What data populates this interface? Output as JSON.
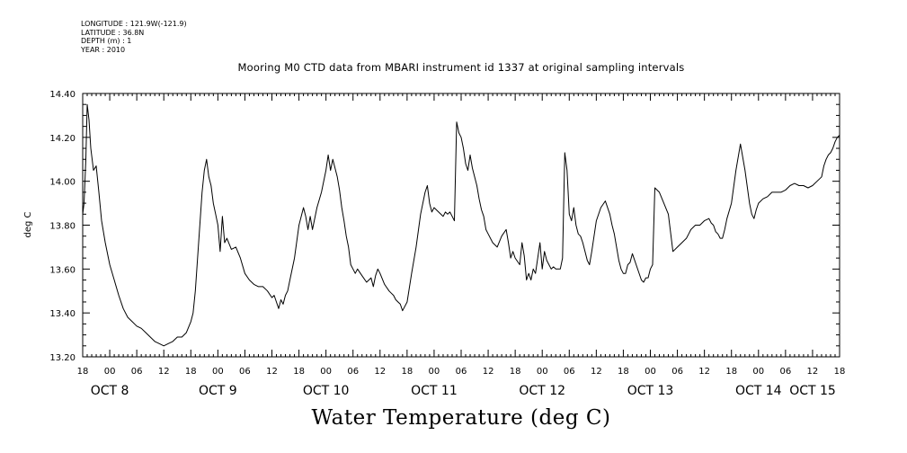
{
  "header": {
    "longitude": "LONGITUDE : 121.9W(-121.9)",
    "latitude": "LATITUDE : 36.8N",
    "depth": "DEPTH (m) : 1",
    "year": "YEAR : 2010"
  },
  "chart_data": {
    "type": "line",
    "title": "Mooring M0 CTD data from MBARI instrument id 1337 at original sampling intervals",
    "bottom_title": "Water Temperature (deg C)",
    "ylabel": "deg C",
    "xlabel": "",
    "ylim": [
      13.2,
      14.4
    ],
    "yticks": [
      13.2,
      13.4,
      13.6,
      13.8,
      14.0,
      14.2,
      14.4
    ],
    "ytick_labels": [
      "13.20",
      "13.40",
      "13.60",
      "13.80",
      "14.00",
      "14.20",
      "14.40"
    ],
    "xlim_hours": [
      0,
      168
    ],
    "xlim_dates": [
      "2010-10-07 18:00",
      "2010-10-14 18:00"
    ],
    "x_unit": "hours from 2010-10-07 18:00",
    "hour_ticks": [
      "18",
      "00",
      "06",
      "12",
      "18",
      "00",
      "06",
      "12",
      "18",
      "00",
      "06",
      "12",
      "18",
      "00",
      "06",
      "12",
      "18",
      "00",
      "06",
      "12",
      "18",
      "00",
      "06",
      "12",
      "18",
      "00",
      "06",
      "12",
      "18"
    ],
    "date_labels": [
      {
        "label": "OCT  8",
        "hour": 6
      },
      {
        "label": "OCT  9",
        "hour": 30
      },
      {
        "label": "OCT 10",
        "hour": 54
      },
      {
        "label": "OCT 11",
        "hour": 78
      },
      {
        "label": "OCT 12",
        "hour": 102
      },
      {
        "label": "OCT 13",
        "hour": 126
      },
      {
        "label": "OCT 14",
        "hour": 150
      },
      {
        "label": "OCT 15",
        "hour": 174
      }
    ],
    "grid": false,
    "series": [
      {
        "name": "",
        "x": [
          0,
          0.3,
          0.7,
          1,
          1.4,
          1.8,
          2.4,
          3,
          3.6,
          4.2,
          5,
          6,
          7,
          8,
          9,
          10,
          11,
          12,
          13,
          14,
          15,
          16,
          17,
          18,
          19,
          20,
          21,
          22,
          23,
          24,
          24.5,
          25,
          25.5,
          26,
          26.5,
          27,
          27.5,
          28,
          28.5,
          29,
          29.5,
          30,
          30.5,
          31,
          31.5,
          32,
          33,
          34,
          35,
          36,
          37,
          38,
          39,
          40,
          41,
          42,
          42.5,
          43,
          43.5,
          44,
          44.5,
          45,
          45.5,
          46,
          47,
          48,
          49,
          49.5,
          50,
          50.5,
          51,
          52,
          53,
          54,
          54.5,
          55,
          55.5,
          56,
          56.5,
          57,
          57.5,
          58,
          58.5,
          59,
          59.5,
          60,
          60.5,
          61,
          62,
          63,
          64,
          64.5,
          65,
          65.5,
          66,
          67,
          68,
          68.5,
          69,
          69.5,
          70,
          70.5,
          71,
          72,
          73,
          74,
          75,
          76,
          76.5,
          77,
          77.5,
          78,
          79,
          80,
          80.5,
          81,
          81.5,
          82,
          82.5,
          83,
          83.5,
          84,
          84.5,
          85,
          85.5,
          86,
          86.5,
          87,
          87.5,
          88,
          88.5,
          89,
          89.5,
          90,
          91,
          92,
          93,
          94,
          94.5,
          95,
          95.5,
          96,
          97,
          97.5,
          98,
          98.5,
          99,
          99.5,
          100,
          100.5,
          101,
          101.5,
          102,
          102.5,
          103,
          103.5,
          104,
          104.5,
          105,
          105.5,
          106,
          106.5,
          107,
          107.5,
          108,
          108.5,
          109,
          109.5,
          110,
          110.5,
          111,
          111.5,
          112,
          112.5,
          113,
          114,
          115,
          116,
          117,
          117.5,
          118,
          118.5,
          119,
          119.5,
          120,
          120.5,
          121,
          121.5,
          122,
          123,
          124,
          124.5,
          125,
          125.5,
          126,
          126.5,
          127,
          128,
          129,
          130,
          131,
          132,
          133,
          134,
          134.5,
          135,
          136,
          137,
          138,
          139,
          139.5,
          140,
          140.5,
          141,
          141.5,
          142,
          142.5,
          143,
          144,
          145,
          146,
          147,
          148,
          148.5,
          149,
          149.5,
          150,
          151,
          152,
          153,
          154,
          155,
          156,
          157,
          158,
          159,
          160,
          161,
          162,
          163,
          164,
          164.5,
          165,
          165.5,
          166,
          166.5,
          167,
          167.5,
          168
        ],
        "y": [
          13.85,
          13.9,
          14.1,
          14.35,
          14.28,
          14.15,
          14.05,
          14.07,
          13.95,
          13.82,
          13.72,
          13.62,
          13.55,
          13.48,
          13.42,
          13.38,
          13.36,
          13.34,
          13.33,
          13.31,
          13.29,
          13.27,
          13.26,
          13.25,
          13.26,
          13.27,
          13.29,
          13.29,
          13.31,
          13.36,
          13.4,
          13.5,
          13.65,
          13.8,
          13.95,
          14.05,
          14.1,
          14.02,
          13.98,
          13.9,
          13.85,
          13.8,
          13.68,
          13.84,
          13.72,
          13.74,
          13.69,
          13.7,
          13.65,
          13.58,
          13.55,
          13.53,
          13.52,
          13.52,
          13.5,
          13.47,
          13.48,
          13.45,
          13.42,
          13.46,
          13.44,
          13.48,
          13.5,
          13.55,
          13.65,
          13.8,
          13.88,
          13.84,
          13.78,
          13.84,
          13.78,
          13.88,
          13.95,
          14.05,
          14.12,
          14.05,
          14.1,
          14.06,
          14.02,
          13.96,
          13.88,
          13.82,
          13.75,
          13.7,
          13.62,
          13.6,
          13.58,
          13.6,
          13.57,
          13.54,
          13.56,
          13.52,
          13.57,
          13.6,
          13.58,
          13.53,
          13.5,
          13.49,
          13.48,
          13.46,
          13.45,
          13.44,
          13.41,
          13.45,
          13.58,
          13.7,
          13.85,
          13.95,
          13.98,
          13.9,
          13.86,
          13.88,
          13.86,
          13.84,
          13.86,
          13.85,
          13.86,
          13.84,
          13.82,
          14.27,
          14.22,
          14.2,
          14.15,
          14.08,
          14.05,
          14.12,
          14.06,
          14.02,
          13.98,
          13.92,
          13.87,
          13.84,
          13.78,
          13.76,
          13.72,
          13.7,
          13.75,
          13.78,
          13.72,
          13.65,
          13.68,
          13.65,
          13.62,
          13.72,
          13.66,
          13.55,
          13.58,
          13.55,
          13.6,
          13.58,
          13.65,
          13.72,
          13.6,
          13.68,
          13.64,
          13.62,
          13.6,
          13.61,
          13.6,
          13.6,
          13.6,
          13.65,
          14.13,
          14.05,
          13.85,
          13.82,
          13.88,
          13.8,
          13.76,
          13.75,
          13.72,
          13.68,
          13.64,
          13.62,
          13.68,
          13.82,
          13.88,
          13.91,
          13.85,
          13.8,
          13.76,
          13.7,
          13.64,
          13.6,
          13.58,
          13.58,
          13.62,
          13.63,
          13.67,
          13.61,
          13.55,
          13.54,
          13.56,
          13.56,
          13.6,
          13.62,
          13.97,
          13.95,
          13.9,
          13.85,
          13.68,
          13.7,
          13.72,
          13.74,
          13.76,
          13.78,
          13.8,
          13.8,
          13.82,
          13.83,
          13.81,
          13.8,
          13.77,
          13.76,
          13.74,
          13.74,
          13.78,
          13.83,
          13.9,
          14.05,
          14.17,
          14.05,
          13.9,
          13.85,
          13.83,
          13.87,
          13.9,
          13.92,
          13.93,
          13.95,
          13.95,
          13.95,
          13.96,
          13.98,
          13.99,
          13.98,
          13.98,
          13.97,
          13.98,
          14.0,
          14.02,
          14.07,
          14.1,
          14.12,
          14.13,
          14.15,
          14.18,
          14.2,
          14.21
        ]
      }
    ]
  }
}
